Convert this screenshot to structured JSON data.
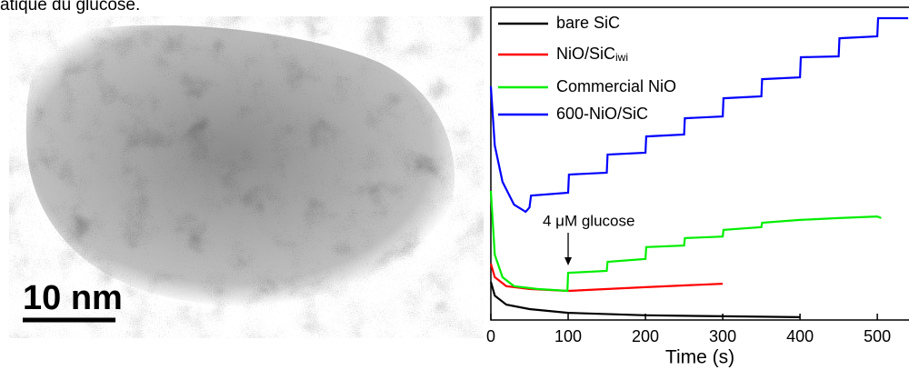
{
  "caption_fragment": "atique du glucose.",
  "image": {
    "scale_bar": "10 nm"
  },
  "chart_data": {
    "type": "line",
    "xlabel": "Time (s)",
    "annotation": "4 μM glucose",
    "annotation_x": 100,
    "xlim": [
      0,
      541
    ],
    "xticks": [
      0,
      100,
      200,
      300,
      400,
      500
    ],
    "ylim": [
      0,
      100
    ],
    "legend": "upper left",
    "series": [
      {
        "name": "bare SiC",
        "color": "#000000",
        "x": [
          0,
          5,
          20,
          50,
          100,
          200,
          300,
          400
        ],
        "values": [
          12.2,
          7.8,
          4.9,
          3.5,
          2.3,
          1.5,
          1.2,
          0.9
        ]
      },
      {
        "name": "NiO/SiC",
        "name_subscript": "iwi",
        "color": "#ff0000",
        "x": [
          0,
          5,
          20,
          50,
          100,
          200,
          300
        ],
        "values": [
          18.0,
          13.7,
          10.8,
          9.9,
          9.3,
          10.5,
          11.6
        ]
      },
      {
        "name": "Commercial NiO",
        "color": "#00ee00",
        "x": [
          0,
          5,
          15,
          30,
          60,
          99,
          100,
          150,
          151,
          200,
          201,
          250,
          251,
          300,
          301,
          350,
          351,
          400,
          450,
          500,
          505
        ],
        "values": [
          41.3,
          20.9,
          13.7,
          10.8,
          9.9,
          9.3,
          15.1,
          15.7,
          18.6,
          19.5,
          23.3,
          23.8,
          26.2,
          26.7,
          28.8,
          29.7,
          31.1,
          32.0,
          32.6,
          33.1,
          32.6
        ]
      },
      {
        "name": "600-NiO/SiC",
        "color": "#0000ff",
        "x": [
          0,
          5,
          15,
          30,
          45,
          50,
          52,
          100,
          101,
          150,
          151,
          200,
          201,
          250,
          251,
          300,
          301,
          350,
          351,
          400,
          401,
          450,
          451,
          500,
          501,
          540
        ],
        "values": [
          74.7,
          55.8,
          44.2,
          36.9,
          34.6,
          36.0,
          39.8,
          40.7,
          46.5,
          47.1,
          52.9,
          53.5,
          58.7,
          59.3,
          64.5,
          65.1,
          70.9,
          71.5,
          77.0,
          77.6,
          84.0,
          84.3,
          90.1,
          90.7,
          96.5,
          96.5
        ]
      }
    ]
  }
}
